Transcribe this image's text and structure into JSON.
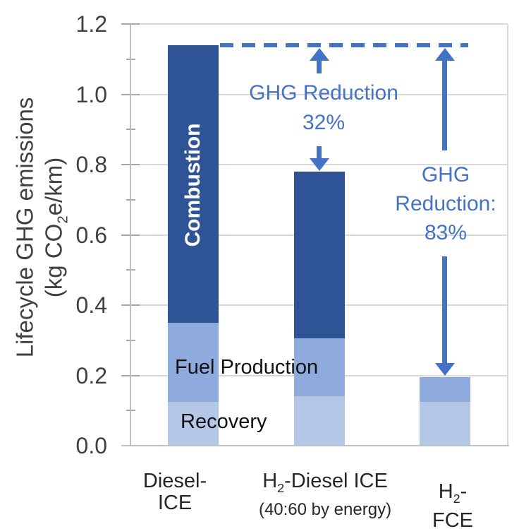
{
  "chart_data": {
    "type": "bar",
    "stacked": true,
    "title": "",
    "ylabel": "Lifecycle GHG emissions (kg CO2e/km)",
    "ylabel_line1": "Lifecycle GHG emissions",
    "ylabel_line2_pre": "(kg CO",
    "ylabel_line2_sub": "2",
    "ylabel_line2_post": "e/km)",
    "ylim": [
      0,
      1.2
    ],
    "ytick_step": 0.2,
    "ytick_labels": [
      "0.0",
      "0.2",
      "0.4",
      "0.6",
      "0.8",
      "1.0",
      "1.2"
    ],
    "minor_tick_step": 0.1,
    "grid": true,
    "legend": false,
    "categories": [
      "Diesel-ICE",
      "H2-Diesel ICE (40:60 by energy)",
      "H2-FCE"
    ],
    "series": [
      {
        "name": "Recovery",
        "color": "#B4C7E7",
        "values": [
          0.125,
          0.14,
          0.125
        ]
      },
      {
        "name": "Fuel Production",
        "color": "#8FAADC",
        "values": [
          0.225,
          0.165,
          0.07
        ]
      },
      {
        "name": "Combustion",
        "color": "#2F5496",
        "values": [
          0.79,
          0.475,
          0
        ]
      }
    ],
    "totals": [
      1.14,
      0.78,
      0.195
    ],
    "annotations": {
      "baseline_value": 1.14,
      "mid": {
        "line1": "GHG Reduction",
        "line2": "32%"
      },
      "right": {
        "line1": "GHG",
        "line2": "Reduction:",
        "line3": "83%"
      }
    }
  },
  "x_axis_display": {
    "categories": [
      {
        "l1_pre": "Diesel-",
        "l1_sub": "",
        "l1_post": "",
        "line2": "ICE"
      },
      {
        "l1_pre": "H",
        "l1_sub": "2",
        "l1_post": "-Diesel ICE",
        "line2": "(40:60 by energy)"
      },
      {
        "l1_pre": "H",
        "l1_sub": "2",
        "l1_post": "-FCE",
        "line2": ""
      }
    ]
  },
  "colors": {
    "annotation_blue": "#4472C4",
    "gridline": "#D9D9D9",
    "axis_line": "#BFBFBF",
    "tick_mark": "#A6A6A6",
    "tick_label": "#404040",
    "x_label": "#262626",
    "plot_text": "#111111",
    "combustion_label_text": "#FFFFFF"
  }
}
